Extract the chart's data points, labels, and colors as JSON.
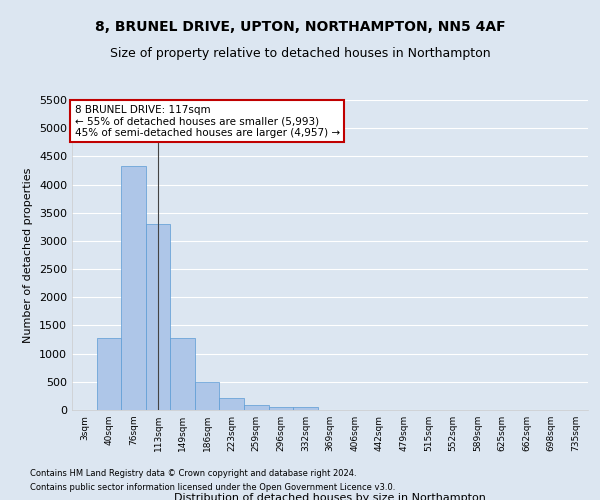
{
  "title": "8, BRUNEL DRIVE, UPTON, NORTHAMPTON, NN5 4AF",
  "subtitle": "Size of property relative to detached houses in Northampton",
  "xlabel": "Distribution of detached houses by size in Northampton",
  "ylabel": "Number of detached properties",
  "footer1": "Contains HM Land Registry data © Crown copyright and database right 2024.",
  "footer2": "Contains public sector information licensed under the Open Government Licence v3.0.",
  "annotation_title": "8 BRUNEL DRIVE: 117sqm",
  "annotation_line1": "← 55% of detached houses are smaller (5,993)",
  "annotation_line2": "45% of semi-detached houses are larger (4,957) →",
  "bar_categories": [
    "3sqm",
    "40sqm",
    "76sqm",
    "113sqm",
    "149sqm",
    "186sqm",
    "223sqm",
    "259sqm",
    "296sqm",
    "332sqm",
    "369sqm",
    "406sqm",
    "442sqm",
    "479sqm",
    "515sqm",
    "552sqm",
    "589sqm",
    "625sqm",
    "662sqm",
    "698sqm",
    "735sqm"
  ],
  "bar_values": [
    0,
    1270,
    4330,
    3300,
    1280,
    490,
    220,
    90,
    60,
    50,
    0,
    0,
    0,
    0,
    0,
    0,
    0,
    0,
    0,
    0,
    0
  ],
  "bar_color": "#aec6e8",
  "bar_edge_color": "#5b9bd5",
  "vline_color": "#444444",
  "vline_x": 3,
  "ylim": [
    0,
    5500
  ],
  "yticks": [
    0,
    500,
    1000,
    1500,
    2000,
    2500,
    3000,
    3500,
    4000,
    4500,
    5000,
    5500
  ],
  "bg_color": "#dce6f1",
  "plot_bg_color": "#dce6f1",
  "annotation_box_facecolor": "#ffffff",
  "annotation_box_edgecolor": "#c00000",
  "grid_color": "#ffffff",
  "title_fontsize": 10,
  "subtitle_fontsize": 9
}
